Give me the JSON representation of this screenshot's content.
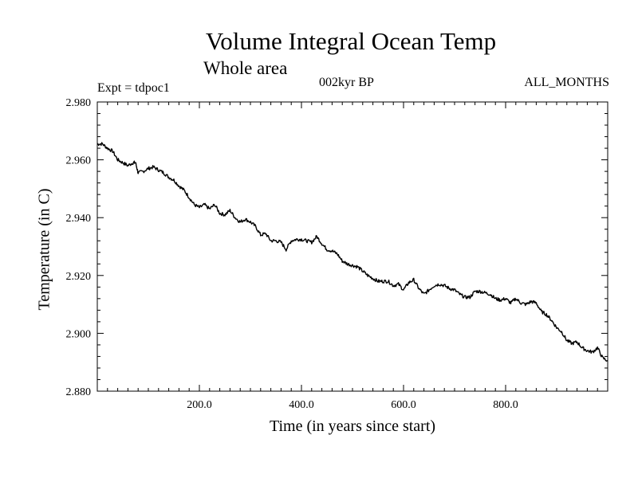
{
  "header": {
    "title": "Volume Integral Ocean Temp",
    "subtitle": "Whole area",
    "experiment": "Expt = tdpoc1",
    "period": "002kyr BP",
    "months": "ALL_MONTHS"
  },
  "chart_data": {
    "type": "line",
    "title": "Volume Integral Ocean Temp",
    "subtitle": "Whole area",
    "xlabel": "Time (in years since start)",
    "ylabel": "Temperature (in C)",
    "xlim": [
      0,
      1000
    ],
    "ylim": [
      2.88,
      2.98
    ],
    "xticks": [
      200,
      400,
      600,
      800
    ],
    "xtick_labels": [
      "200.0",
      "400.0",
      "600.0",
      "800.0"
    ],
    "yticks": [
      2.88,
      2.9,
      2.92,
      2.94,
      2.96,
      2.98
    ],
    "ytick_labels": [
      "2.880",
      "2.900",
      "2.920",
      "2.940",
      "2.960",
      "2.980"
    ],
    "grid": false,
    "series": [
      {
        "name": "Volume Integral Ocean Temp",
        "color": "#000000",
        "x": [
          0,
          10,
          20,
          30,
          40,
          50,
          60,
          70,
          75,
          80,
          90,
          100,
          110,
          120,
          130,
          140,
          150,
          160,
          170,
          180,
          190,
          200,
          210,
          220,
          230,
          240,
          250,
          260,
          270,
          280,
          290,
          300,
          310,
          320,
          330,
          340,
          350,
          360,
          370,
          380,
          390,
          400,
          410,
          420,
          430,
          440,
          450,
          460,
          470,
          480,
          490,
          500,
          510,
          520,
          530,
          540,
          550,
          560,
          570,
          580,
          590,
          600,
          610,
          620,
          630,
          640,
          650,
          660,
          670,
          680,
          690,
          700,
          710,
          720,
          730,
          740,
          750,
          760,
          770,
          780,
          790,
          800,
          810,
          820,
          830,
          840,
          850,
          860,
          870,
          880,
          890,
          900,
          910,
          920,
          930,
          940,
          950,
          960,
          970,
          980,
          990,
          1000
        ],
        "values": [
          2.9655,
          2.9655,
          2.964,
          2.963,
          2.96,
          2.959,
          2.958,
          2.959,
          2.959,
          2.9555,
          2.956,
          2.957,
          2.9575,
          2.9565,
          2.9555,
          2.954,
          2.953,
          2.951,
          2.9495,
          2.947,
          2.9445,
          2.9435,
          2.9445,
          2.943,
          2.9445,
          2.9415,
          2.941,
          2.9425,
          2.94,
          2.9385,
          2.9395,
          2.9385,
          2.937,
          2.934,
          2.9345,
          2.932,
          2.932,
          2.9315,
          2.929,
          2.932,
          2.9325,
          2.9325,
          2.932,
          2.9315,
          2.9335,
          2.931,
          2.929,
          2.9285,
          2.9275,
          2.925,
          2.924,
          2.9235,
          2.923,
          2.9215,
          2.92,
          2.919,
          2.918,
          2.918,
          2.918,
          2.9165,
          2.917,
          2.915,
          2.9175,
          2.9185,
          2.9155,
          2.9135,
          2.915,
          2.9165,
          2.917,
          2.9165,
          2.9155,
          2.915,
          2.9135,
          2.9125,
          2.9125,
          2.9145,
          2.9145,
          2.914,
          2.9135,
          2.912,
          2.9115,
          2.912,
          2.9105,
          2.912,
          2.9105,
          2.91,
          2.911,
          2.9105,
          2.9075,
          2.9065,
          2.9045,
          2.902,
          2.9005,
          2.8975,
          2.8965,
          2.897,
          2.895,
          2.894,
          2.8935,
          2.895,
          2.8915,
          2.8905
        ]
      }
    ]
  }
}
